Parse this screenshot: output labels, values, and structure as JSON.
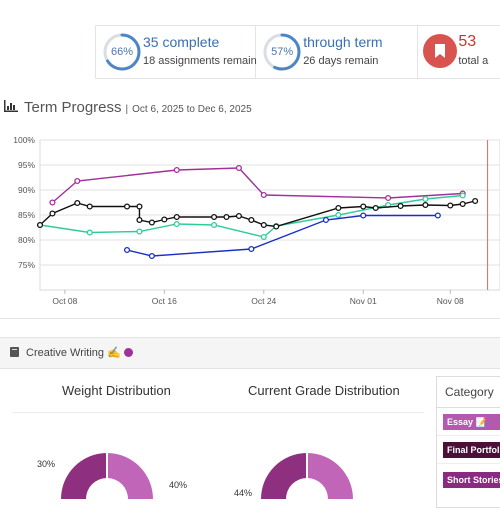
{
  "stats": [
    {
      "ring_label": "66%",
      "ring_value": 0.66,
      "headline": "35 complete",
      "detail": "18 assignments remain"
    },
    {
      "ring_label": "57%",
      "ring_value": 0.57,
      "headline": "through term",
      "detail": "26 days remain"
    },
    {
      "icon": "bookmark-icon",
      "headline": "53",
      "detail": "total a"
    }
  ],
  "term_progress": {
    "title": "Term Progress",
    "separator": "|",
    "date_range": "Oct 6, 2025 to Dec 6, 2025"
  },
  "chart_data": {
    "type": "line",
    "ylim": [
      70,
      100
    ],
    "y_ticks": [
      "100%",
      "95%",
      "90%",
      "85%",
      "80%",
      "75%"
    ],
    "x_ticks": [
      "Oct 08",
      "Oct 16",
      "Oct 24",
      "Nov 01",
      "Nov 08"
    ],
    "today_marker": "Nov 11",
    "series": [
      {
        "color": "#a0309a",
        "points": [
          [
            "Oct 07",
            87.5
          ],
          [
            "Oct 09",
            91.8
          ],
          [
            "Oct 17",
            94.0
          ],
          [
            "Oct 22",
            94.4
          ],
          [
            "Oct 24",
            89.0
          ],
          [
            "Nov 03",
            88.4
          ],
          [
            "Nov 09",
            89.3
          ]
        ]
      },
      {
        "color": "#2ecc9a",
        "points": [
          [
            "Oct 06",
            83.0
          ],
          [
            "Oct 10",
            81.5
          ],
          [
            "Oct 14",
            81.7
          ],
          [
            "Oct 17",
            83.2
          ],
          [
            "Oct 20",
            83.0
          ],
          [
            "Oct 24",
            80.6
          ],
          [
            "Oct 25",
            82.8
          ],
          [
            "Oct 30",
            85.0
          ],
          [
            "Nov 03",
            87.0
          ],
          [
            "Nov 06",
            88.2
          ],
          [
            "Nov 09",
            88.9
          ]
        ]
      },
      {
        "color": "#111111",
        "points": [
          [
            "Oct 06",
            83.0
          ],
          [
            "Oct 07",
            85.3
          ],
          [
            "Oct 09",
            87.4
          ],
          [
            "Oct 10",
            86.7
          ],
          [
            "Oct 13",
            86.7
          ],
          [
            "Oct 14",
            86.7
          ],
          [
            "Oct 14",
            84.0
          ],
          [
            "Oct 15",
            83.5
          ],
          [
            "Oct 16",
            84.1
          ],
          [
            "Oct 17",
            84.6
          ],
          [
            "Oct 20",
            84.6
          ],
          [
            "Oct 21",
            84.6
          ],
          [
            "Oct 22",
            84.8
          ],
          [
            "Oct 23",
            84.0
          ],
          [
            "Oct 24",
            83.0
          ],
          [
            "Oct 25",
            82.7
          ],
          [
            "Oct 30",
            86.4
          ],
          [
            "Nov 01",
            86.7
          ],
          [
            "Nov 02",
            86.4
          ],
          [
            "Nov 04",
            86.8
          ],
          [
            "Nov 06",
            87.0
          ],
          [
            "Nov 08",
            86.9
          ],
          [
            "Nov 09",
            87.2
          ],
          [
            "Nov 10",
            87.8
          ]
        ]
      },
      {
        "color": "#1a2fc4",
        "points": [
          [
            "Oct 13",
            78.0
          ],
          [
            "Oct 15",
            76.8
          ],
          [
            "Oct 23",
            78.2
          ],
          [
            "Oct 29",
            84.0
          ],
          [
            "Nov 01",
            84.9
          ],
          [
            "Nov 07",
            84.9
          ]
        ]
      }
    ]
  },
  "course_panel": {
    "book_icon": "book-icon",
    "title": "Creative Writing ✍️",
    "dot_color": "#a0309a"
  },
  "pies": {
    "weight_title": "Weight Distribution",
    "grade_title": "Current Grade Distribution",
    "weight_labels": [
      "30%",
      "40%"
    ],
    "grade_labels": [
      "44%"
    ],
    "colors": [
      "#8e2f7f",
      "#c065b8"
    ]
  },
  "category_panel": {
    "header": "Category",
    "items": [
      {
        "label": "Essay 📝",
        "color": "#b459b0"
      },
      {
        "label": "Final Portfolio",
        "color": "#4a1038"
      },
      {
        "label": "Short Stories",
        "color": "#8a2a80"
      }
    ]
  }
}
